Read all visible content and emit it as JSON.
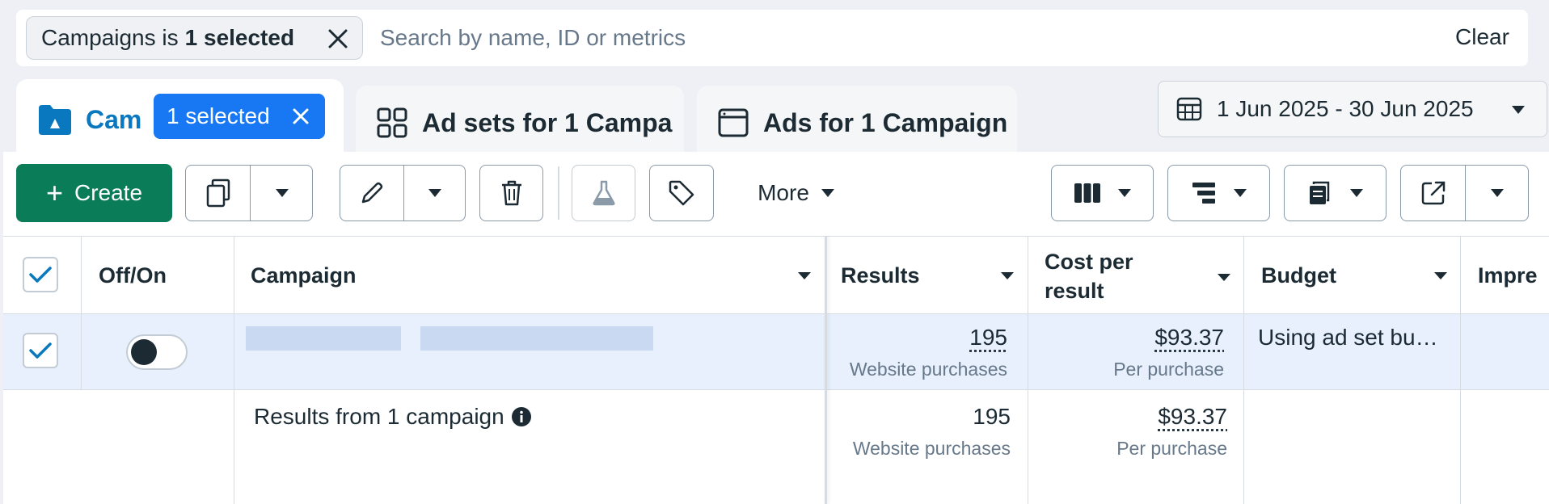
{
  "filter": {
    "chip_prefix": "Campaigns is",
    "chip_bold": "1 selected",
    "search_placeholder": "Search by name, ID or metrics",
    "clear_label": "Clear"
  },
  "tabs": [
    {
      "label": "Cam",
      "badge": "1 selected"
    },
    {
      "label": "Ad sets for 1 Campa"
    },
    {
      "label": "Ads for 1 Campaign"
    }
  ],
  "date_range": "1 Jun 2025 - 30 Jun 2025",
  "toolbar": {
    "create_label": "Create",
    "more_label": "More"
  },
  "table": {
    "headers": {
      "toggle": "Off/On",
      "campaign": "Campaign",
      "results": "Results",
      "cost_line1": "Cost per",
      "cost_line2": "result",
      "budget": "Budget",
      "impressions": "Impre"
    },
    "row": {
      "results_value": "195",
      "results_sub": "Website purchases",
      "cost_value": "$93.37",
      "cost_sub": "Per purchase",
      "budget": "Using ad set bu…"
    },
    "summary": {
      "label": "Results from 1 campaign",
      "results_value": "195",
      "results_sub": "Website purchases",
      "cost_value": "$93.37",
      "cost_sub": "Per purchase"
    }
  },
  "colors": {
    "accent": "#1877f2",
    "create_green": "#0a7c57",
    "selected_row": "#e7f0fc"
  }
}
